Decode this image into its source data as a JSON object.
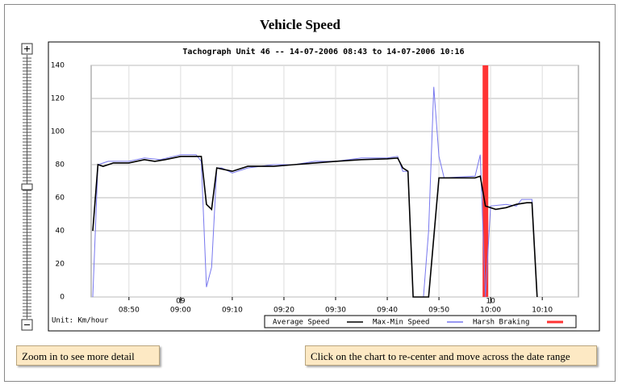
{
  "title": "Vehicle Speed",
  "zoom_hint": "Zoom in to see more detail",
  "click_hint": "Click on the chart to re-center and move across the date range",
  "chart_data": {
    "type": "line",
    "title": "Tachograph Unit 46 -- 14-07-2006 08:43 to 14-07-2006 10:16",
    "unit_label": "Unit: Km/hour",
    "xlim": [
      "08:43",
      "10:17"
    ],
    "ylim": [
      0,
      140
    ],
    "yticks": [
      0,
      20,
      40,
      60,
      80,
      100,
      120,
      140
    ],
    "xticks": [
      "08:50",
      "09:00",
      "09:10",
      "09:20",
      "09:30",
      "09:40",
      "09:50",
      "10:00",
      "10:10"
    ],
    "xticks_major": [
      {
        "value": "09:00",
        "label": "09"
      },
      {
        "value": "10:00",
        "label": "10"
      }
    ],
    "grid": true,
    "series": [
      {
        "name": "Average Speed",
        "color": "#000000",
        "x": [
          "08:43",
          "08:44",
          "08:45",
          "08:47",
          "08:50",
          "08:53",
          "08:55",
          "08:57",
          "09:00",
          "09:03",
          "09:04",
          "09:05",
          "09:06",
          "09:07",
          "09:10",
          "09:13",
          "09:18",
          "09:22",
          "09:26",
          "09:30",
          "09:35",
          "09:40",
          "09:42",
          "09:43",
          "09:44",
          "09:45",
          "09:48",
          "09:50",
          "09:57",
          "09:58",
          "09:59",
          "10:01",
          "10:03",
          "10:05",
          "10:07",
          "10:08",
          "10:09"
        ],
        "values": [
          40,
          80,
          79,
          81,
          81,
          83,
          82,
          83,
          85,
          85,
          85,
          56,
          53,
          78,
          76,
          79,
          79,
          80,
          81,
          82,
          83,
          83.5,
          84,
          78,
          76,
          0,
          0,
          72,
          72,
          73,
          55,
          53,
          54,
          56,
          57,
          57,
          0
        ]
      },
      {
        "name": "Max-Min Speed",
        "color": "#7777ee",
        "x": [
          "08:43",
          "08:44",
          "08:46",
          "08:50",
          "08:53",
          "08:56",
          "09:00",
          "09:03",
          "09:04",
          "09:05",
          "09:06",
          "09:07",
          "09:08",
          "09:10",
          "09:13",
          "09:18",
          "09:22",
          "09:26",
          "09:30",
          "09:35",
          "09:40",
          "09:42",
          "09:43",
          "09:44",
          "09:45",
          "09:47",
          "09:48",
          "09:49",
          "09:50",
          "09:51",
          "09:57",
          "09:58",
          "09:59",
          "10:00",
          "10:03",
          "10:05",
          "10:06",
          "10:08",
          "10:09"
        ],
        "values": [
          0,
          80,
          82,
          82,
          84,
          83,
          86,
          86,
          82,
          6,
          18,
          78,
          78,
          75,
          78,
          80,
          80,
          82,
          82,
          84,
          84,
          85,
          76,
          76,
          0,
          0,
          40,
          127,
          85,
          72,
          73,
          86,
          0,
          55,
          56,
          55,
          59,
          59,
          0
        ]
      }
    ],
    "markers": {
      "name": "Harsh Braking",
      "color": "#ff3333",
      "x": [
        "09:59"
      ]
    }
  }
}
